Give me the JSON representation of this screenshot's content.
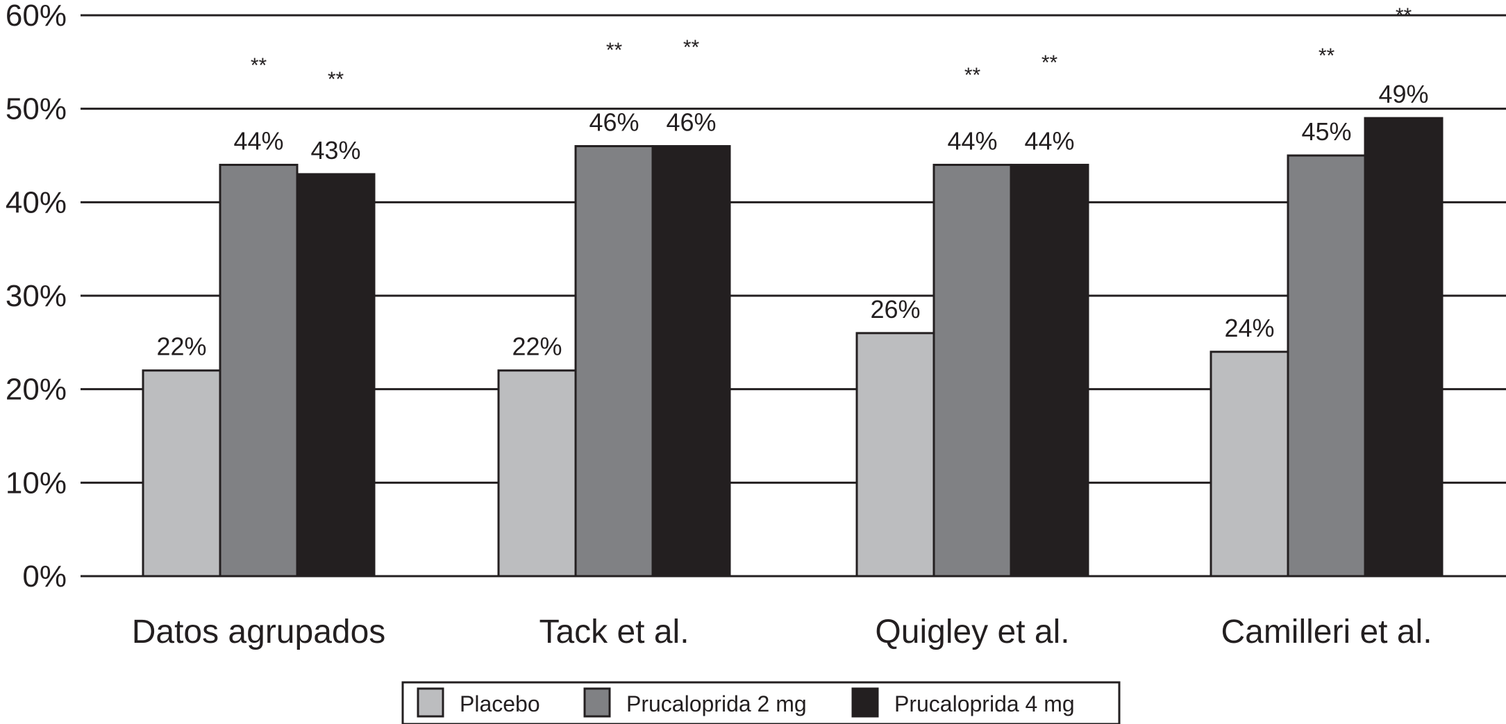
{
  "chart_data": {
    "type": "bar",
    "categories": [
      "Datos agrupados",
      "Tack  et al.",
      "Quigley  et al.",
      "Camilleri  et al."
    ],
    "series": [
      {
        "name": "Placebo",
        "values": [
          22,
          22,
          26,
          24
        ],
        "labels": [
          "22%",
          "22%",
          "26%",
          "24%"
        ],
        "color": "#bcbdbf"
      },
      {
        "name": "Prucaloprida  2 mg",
        "values": [
          44,
          46,
          44,
          45
        ],
        "labels": [
          "44%",
          "46%",
          "44%",
          "45%"
        ],
        "color": "#808184"
      },
      {
        "name": "Prucaloprida 4 mg",
        "values": [
          43,
          46,
          44,
          49
        ],
        "labels": [
          "43%",
          "46%",
          "44%",
          "49%"
        ],
        "color": "#231f20"
      }
    ],
    "ylim": [
      0,
      60
    ],
    "yticks": [
      0,
      10,
      20,
      30,
      40,
      50,
      60
    ],
    "ytick_labels": [
      "0%",
      "10%",
      "20%",
      "30%",
      "40%",
      "50%",
      "60%"
    ],
    "grid": true,
    "legend_position": "bottom-center",
    "significance": {
      "marker": "**",
      "series": [
        "Prucaloprida  2 mg",
        "Prucaloprida 4 mg"
      ]
    }
  }
}
